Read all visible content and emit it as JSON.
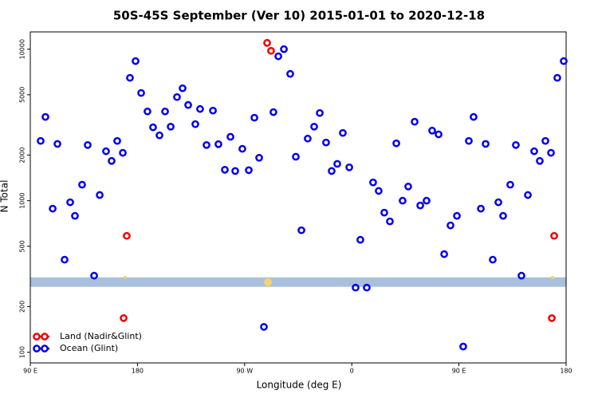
{
  "chart_data": {
    "type": "scatter",
    "title": "50S-45S September (Ver 10)   2015-01-01 to 2020-12-18",
    "xlabel": "Longitude (deg E)",
    "ylabel": "N Total",
    "log_y": true,
    "xlim": [
      90,
      540
    ],
    "ylim": [
      85,
      13000
    ],
    "xticks": [
      {
        "value": 90,
        "label": "90 E"
      },
      {
        "value": 180,
        "label": "180"
      },
      {
        "value": 270,
        "label": "90 W"
      },
      {
        "value": 360,
        "label": "0"
      },
      {
        "value": 450,
        "label": "90 E"
      },
      {
        "value": 540,
        "label": "180"
      }
    ],
    "yticks": [
      100,
      200,
      500,
      1000,
      2000,
      5000,
      10000
    ],
    "legend": "bottom-left",
    "band": [
      270,
      312
    ],
    "band_color": "#a9c0dd",
    "markers": {
      "color": "#f5d46a",
      "x": [
        169.7,
        289.6,
        528.6
      ],
      "values": [
        312,
        290,
        312
      ]
    },
    "series": [
      {
        "name": "Land (Nadir&Glint)",
        "color": "#ee0000",
        "x": [
          168.4,
          171.0,
          288.9,
          292.2,
          528.0,
          530.0
        ],
        "values": [
          168,
          586,
          11000,
          9750,
          168,
          586
        ]
      },
      {
        "name": "Ocean (Glint)",
        "color": "#0000ee",
        "x": [
          98.7,
          102.7,
          108.8,
          112.8,
          118.8,
          123.5,
          127.5,
          133.5,
          138.2,
          143.6,
          148.3,
          153.6,
          158.3,
          163.0,
          167.7,
          173.7,
          178.4,
          183.1,
          188.4,
          193.1,
          198.5,
          203.2,
          207.9,
          213.2,
          217.9,
          222.6,
          228.6,
          232.6,
          238.0,
          243.4,
          248.0,
          253.4,
          258.1,
          262.1,
          268.1,
          273.5,
          278.2,
          282.2,
          286.2,
          294.2,
          298.3,
          303.0,
          308.3,
          313.0,
          317.7,
          323.0,
          328.4,
          333.1,
          338.4,
          343.1,
          347.8,
          352.5,
          357.9,
          363.2,
          367.2,
          372.6,
          377.9,
          382.6,
          387.3,
          392.0,
          397.4,
          402.7,
          407.4,
          412.8,
          417.5,
          422.8,
          427.5,
          432.9,
          437.6,
          442.9,
          448.3,
          453.6,
          458.3,
          462.3,
          468.4,
          472.4,
          478.4,
          483.1,
          487.1,
          493.1,
          497.8,
          502.5,
          507.9,
          513.2,
          517.9,
          522.6,
          527.3,
          532.6,
          538.0
        ],
        "values": [
          2480,
          3570,
          886,
          2370,
          408,
          976,
          794,
          1275,
          2330,
          320,
          1090,
          2120,
          1830,
          2480,
          2070,
          6470,
          8340,
          5140,
          3880,
          3050,
          2700,
          3880,
          3080,
          4830,
          5520,
          4280,
          3200,
          4030,
          2330,
          3930,
          2360,
          1600,
          2640,
          1570,
          2200,
          1590,
          3530,
          1920,
          147,
          3840,
          8970,
          10000,
          6870,
          1950,
          638,
          2570,
          3080,
          3790,
          2420,
          1570,
          1750,
          2800,
          1660,
          267,
          552,
          267,
          1320,
          1160,
          834,
          730,
          2390,
          1000,
          1240,
          3320,
          930,
          1000,
          2900,
          2740,
          444,
          687,
          794,
          109,
          2480,
          3570,
          886,
          2370,
          408,
          976,
          794,
          1275,
          2330,
          320,
          1090,
          2120,
          1830,
          2480,
          2070,
          6470,
          8340
        ]
      }
    ]
  }
}
